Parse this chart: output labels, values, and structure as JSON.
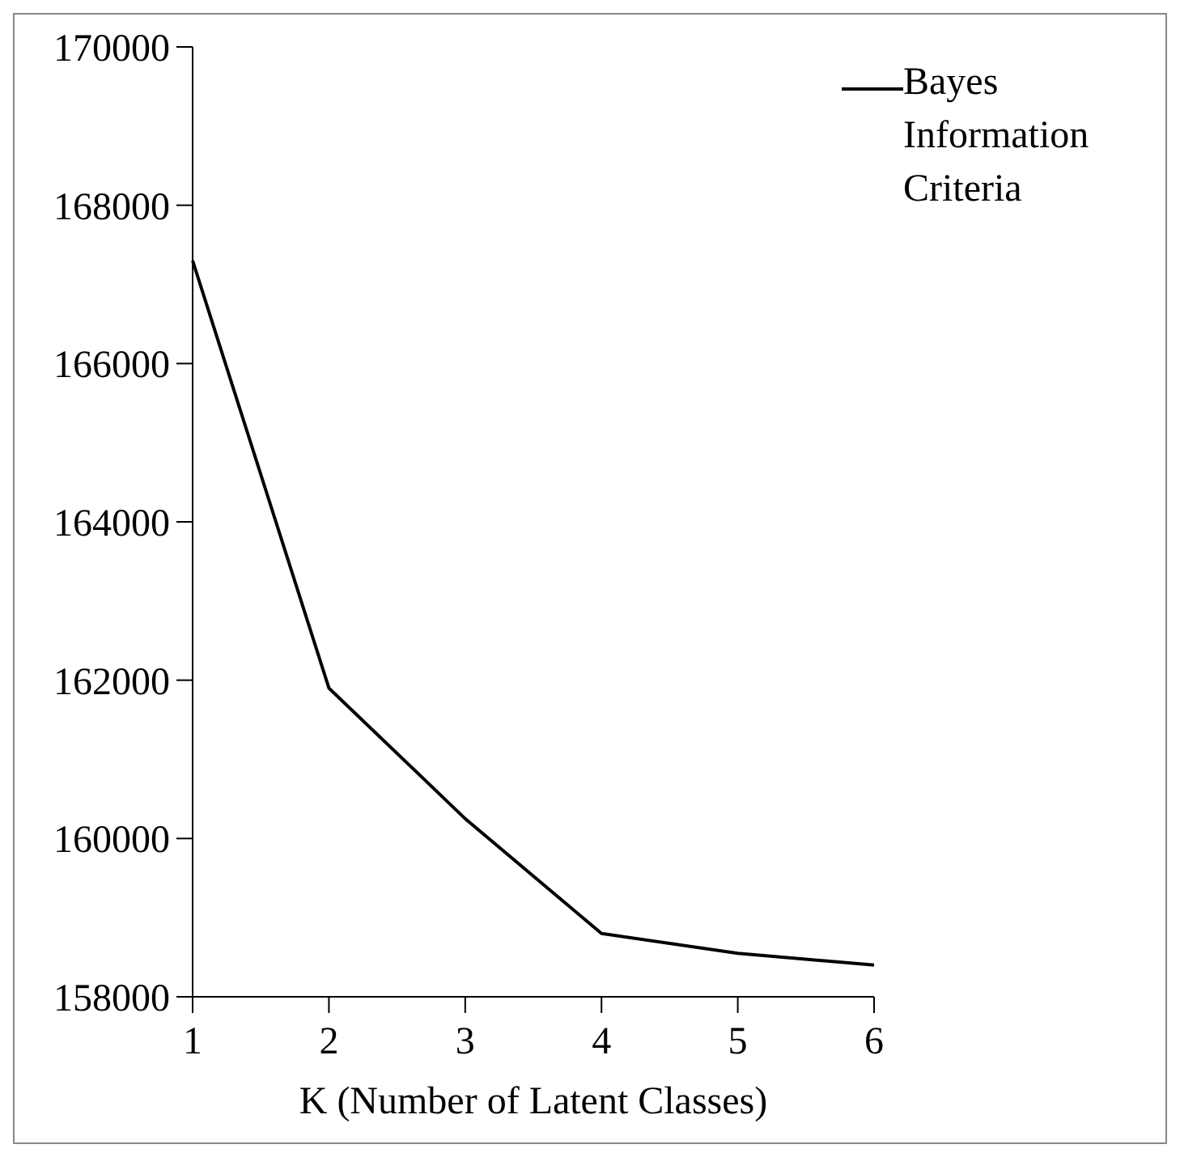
{
  "chart_data": {
    "type": "line",
    "xlabel": "K (Number of Latent Classes)",
    "categories": [
      "1",
      "2",
      "3",
      "4",
      "5",
      "6"
    ],
    "series": [
      {
        "name": "Bayes Information Criteria",
        "color": "#000000",
        "values": [
          167300,
          161900,
          160250,
          158800,
          158550,
          158400
        ]
      }
    ],
    "ylim": [
      158000,
      170000
    ],
    "yticks": [
      158000,
      160000,
      162000,
      164000,
      166000,
      168000,
      170000
    ],
    "grid": false,
    "legend": "top right"
  }
}
